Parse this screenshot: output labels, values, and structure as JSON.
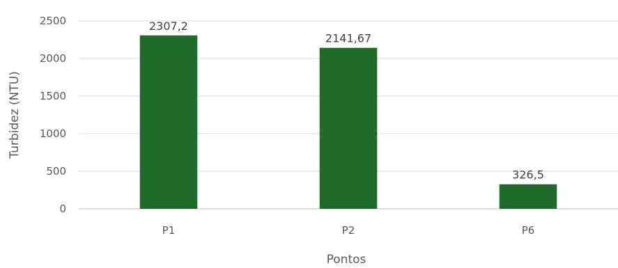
{
  "chart_data": {
    "type": "bar",
    "title": "",
    "xlabel": "Pontos",
    "ylabel": "Turbidez (NTU)",
    "categories": [
      "P1",
      "P2",
      "P6"
    ],
    "values": [
      2307.2,
      2141.67,
      326.5
    ],
    "data_labels": [
      "2307,2",
      "2141,67",
      "326,5"
    ],
    "y_ticks": [
      0,
      500,
      1000,
      1500,
      2000,
      2500
    ],
    "y_tick_labels": [
      "0",
      "500",
      "1000",
      "1500",
      "2000",
      "2500"
    ],
    "ylim": [
      0,
      2500
    ],
    "grid": true,
    "legend": "none",
    "bar_color": "#1e6b2a",
    "grid_color": "#d9d9d9"
  }
}
